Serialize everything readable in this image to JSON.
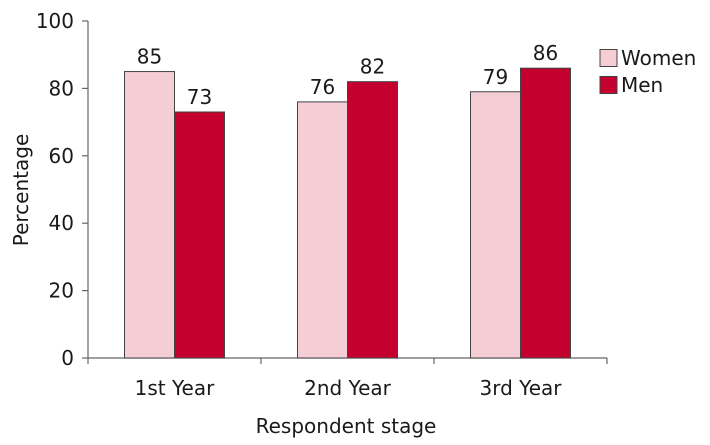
{
  "chart_data": {
    "type": "bar",
    "title": "",
    "xlabel": "Respondent stage",
    "ylabel": "Percentage",
    "categories": [
      "1st Year",
      "2nd Year",
      "3rd Year"
    ],
    "series": [
      {
        "name": "Women",
        "values": [
          85,
          76,
          79
        ],
        "color": "#f4cdd5"
      },
      {
        "name": "Men",
        "values": [
          73,
          82,
          86
        ],
        "color": "#c4002f"
      }
    ],
    "ylim": [
      0,
      100
    ],
    "yticks": [
      0,
      20,
      40,
      60,
      80,
      100
    ],
    "ytick_labels": [
      "0",
      "20",
      "40",
      "60",
      "80",
      "100"
    ],
    "grid": false,
    "legend": "top-right",
    "data_labels": true,
    "axis_color": "#666666",
    "bar_stroke": "#444444"
  }
}
